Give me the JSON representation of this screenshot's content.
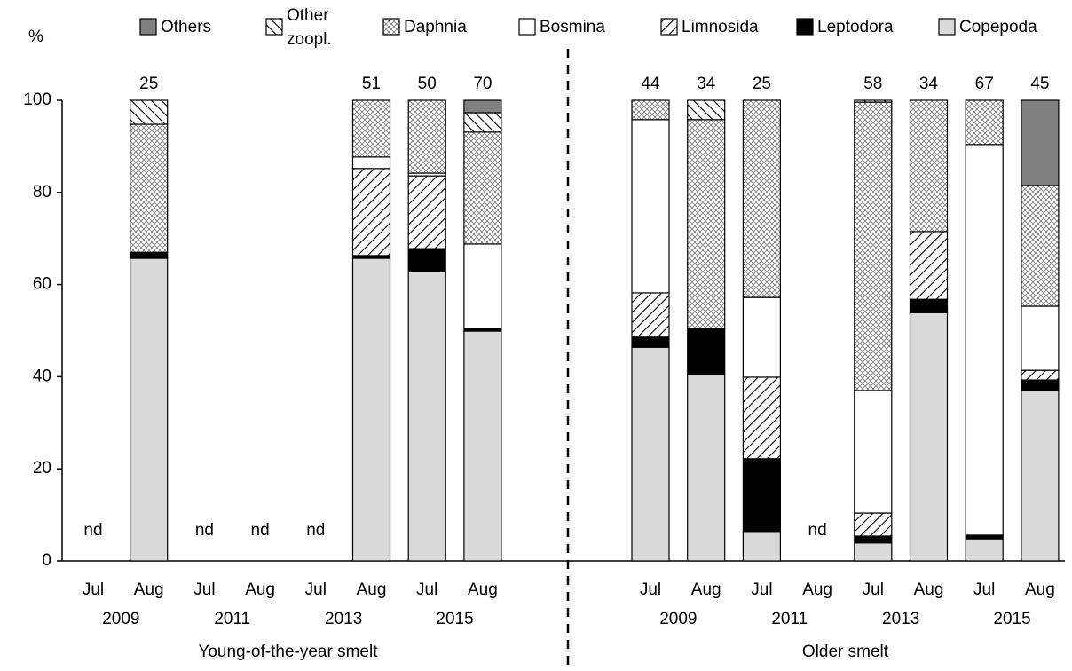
{
  "chart_data": {
    "type": "stacked_bar",
    "y_label": "%",
    "ylim": [
      0,
      100
    ],
    "yticks": [
      0,
      20,
      40,
      60,
      80,
      100
    ],
    "categories": [
      "Jul",
      "Aug",
      "Jul",
      "Aug",
      "Jul",
      "Aug",
      "Jul",
      "Aug",
      "Jul",
      "Aug",
      "Jul",
      "Aug",
      "Jul",
      "Aug",
      "Jul",
      "Aug"
    ],
    "groups": [
      {
        "name": "Young-of-the-year smelt",
        "years": [
          "2009",
          "2011",
          "2013",
          "2015"
        ]
      },
      {
        "name": "Older smelt",
        "years": [
          "2009",
          "2011",
          "2013",
          "2015"
        ]
      }
    ],
    "sample_sizes": [
      null,
      25,
      null,
      null,
      null,
      51,
      50,
      70,
      44,
      34,
      25,
      null,
      58,
      34,
      67,
      45
    ],
    "no_data_label": "nd",
    "series": [
      {
        "name": "Copepoda",
        "color": "#d9d9d9",
        "pattern": "solid",
        "values": [
          null,
          65.7,
          null,
          null,
          null,
          65.7,
          62.8,
          49.9,
          46.4,
          40.5,
          6.4,
          null,
          3.9,
          53.9,
          4.8,
          37.0
        ]
      },
      {
        "name": "Leptodora",
        "color": "#000000",
        "pattern": "solid",
        "values": [
          null,
          1.3,
          null,
          null,
          null,
          0.6,
          5.0,
          0.6,
          2.2,
          10.0,
          15.8,
          null,
          1.5,
          2.9,
          0.8,
          2.3
        ]
      },
      {
        "name": "Limnosida",
        "color": "#000000",
        "pattern": "slash",
        "values": [
          null,
          0,
          null,
          null,
          null,
          18.9,
          15.8,
          0,
          9.6,
          0,
          17.7,
          null,
          5.0,
          14.7,
          0,
          2.1
        ]
      },
      {
        "name": "Bosmina",
        "color": "#ffffff",
        "pattern": "solid",
        "values": [
          null,
          0,
          null,
          null,
          null,
          2.5,
          0.6,
          18.3,
          37.6,
          0,
          17.3,
          null,
          26.6,
          0,
          84.8,
          13.9
        ]
      },
      {
        "name": "Daphnia",
        "color": "#000000",
        "pattern": "crosshatch",
        "values": [
          null,
          27.8,
          null,
          null,
          null,
          12.3,
          15.8,
          24.3,
          4.2,
          45.3,
          42.8,
          null,
          62.6,
          28.5,
          9.6,
          26.2
        ]
      },
      {
        "name": "Other zoopl.",
        "color": "#000000",
        "pattern": "backslash",
        "values": [
          null,
          5.2,
          null,
          null,
          null,
          0,
          0,
          4.2,
          0,
          4.2,
          0,
          null,
          0.4,
          0,
          0,
          0
        ]
      },
      {
        "name": "Others",
        "color": "#808080",
        "pattern": "solid",
        "values": [
          null,
          0,
          null,
          null,
          null,
          0,
          0,
          2.7,
          0,
          0,
          0,
          null,
          0,
          0,
          0,
          18.5
        ]
      }
    ]
  }
}
